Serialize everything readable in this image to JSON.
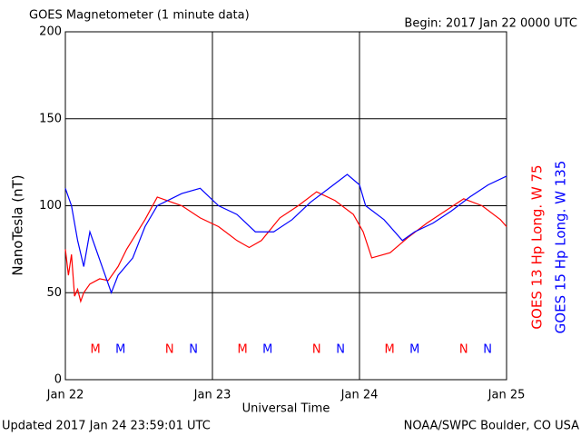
{
  "chart_data": {
    "type": "line",
    "title": "GOES Magnetometer (1 minute data)",
    "subtitle": "Begin:  2017 Jan 22 0000 UTC",
    "x_label": "Universal Time",
    "y_label": "NanoTesla (nT)",
    "footer_left": "Updated 2017 Jan 24 23:59:01 UTC",
    "footer_right": "NOAA/SWPC Boulder, CO USA",
    "xlim": [
      0,
      72
    ],
    "xticks": [
      {
        "value": 0,
        "label": "Jan 22"
      },
      {
        "value": 24,
        "label": "Jan 23"
      },
      {
        "value": 48,
        "label": "Jan 24"
      },
      {
        "value": 72,
        "label": "Jan 25"
      }
    ],
    "ylim": [
      0,
      200
    ],
    "yticks": [
      0,
      50,
      100,
      150,
      200
    ],
    "grid": true,
    "series": [
      {
        "name": "GOES 13 Hp  Long. W 75",
        "color": "#ff0000",
        "x": [
          0,
          0.5,
          1,
          1.5,
          2,
          2.5,
          3,
          4,
          5.6,
          7,
          8.6,
          10,
          13,
          15,
          19,
          22,
          25,
          28,
          30,
          32,
          35,
          38,
          41,
          44,
          47,
          48.6,
          50,
          53,
          56,
          59,
          62,
          65,
          68,
          71,
          72
        ],
        "values": [
          75,
          60,
          72,
          48,
          52,
          45,
          50,
          55,
          58,
          57,
          65,
          75,
          92,
          105,
          100,
          93,
          88,
          80,
          76,
          80,
          93,
          100,
          108,
          103,
          95,
          85,
          70,
          73,
          82,
          90,
          97,
          104,
          100,
          92,
          88
        ]
      },
      {
        "name": "GOES 15 Hp  Long. W 135",
        "color": "#0000ff",
        "x": [
          0,
          1,
          2,
          3,
          4,
          5,
          6,
          7.5,
          8.6,
          11,
          13,
          15,
          19,
          22,
          25,
          28,
          31,
          34,
          37,
          40,
          43,
          46,
          48,
          49,
          52,
          55,
          57,
          60,
          63,
          66,
          69,
          72
        ],
        "values": [
          110,
          100,
          80,
          65,
          85,
          75,
          65,
          50,
          60,
          70,
          88,
          100,
          107,
          110,
          100,
          95,
          85,
          85,
          92,
          102,
          110,
          118,
          112,
          100,
          92,
          80,
          85,
          90,
          97,
          105,
          112,
          117
        ]
      }
    ],
    "markers": [
      {
        "label": "M",
        "x": 4.9,
        "color": "#ff0000"
      },
      {
        "label": "M",
        "x": 9.0,
        "color": "#0000ff"
      },
      {
        "label": "N",
        "x": 17.0,
        "color": "#ff0000"
      },
      {
        "label": "N",
        "x": 20.9,
        "color": "#0000ff"
      },
      {
        "label": "M",
        "x": 28.9,
        "color": "#ff0000"
      },
      {
        "label": "M",
        "x": 33.0,
        "color": "#0000ff"
      },
      {
        "label": "N",
        "x": 41.0,
        "color": "#ff0000"
      },
      {
        "label": "N",
        "x": 44.9,
        "color": "#0000ff"
      },
      {
        "label": "M",
        "x": 52.9,
        "color": "#ff0000"
      },
      {
        "label": "M",
        "x": 57.0,
        "color": "#0000ff"
      },
      {
        "label": "N",
        "x": 65.0,
        "color": "#ff0000"
      },
      {
        "label": "N",
        "x": 68.9,
        "color": "#0000ff"
      }
    ]
  }
}
